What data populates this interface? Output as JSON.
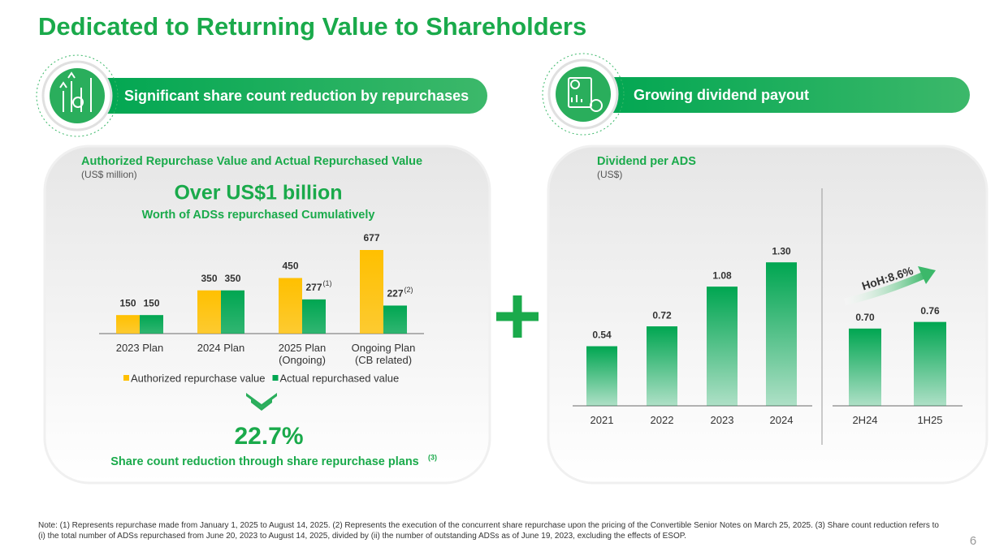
{
  "title": "Dedicated to Returning Value to Shareholders",
  "panels": [
    {
      "header": "Significant share count reduction by repurchases"
    },
    {
      "header": "Growing dividend payout"
    }
  ],
  "highlights": {
    "headline": "Over US$1 billion",
    "headline_sub": "Worth of ADSs repurchased Cumulatively",
    "reduction": "22.7%",
    "reduction_text": "Share count reduction through share repurchase plans",
    "reduction_note": "(3)"
  },
  "chart_data": [
    {
      "type": "bar",
      "title": "Authorized Repurchase Value and Actual Repurchased Value",
      "subtitle": "(US$ million)",
      "categories": [
        "2023 Plan",
        "2024 Plan",
        "2025 Plan\n(Ongoing)",
        "Ongoing Plan\n(CB related)"
      ],
      "series": [
        {
          "name": "Authorized repurchase value",
          "color": "#ffc000",
          "values": [
            150,
            350,
            450,
            677
          ]
        },
        {
          "name": "Actual repurchased value",
          "color": "#00a651",
          "values": [
            150,
            350,
            277,
            227
          ],
          "value_notes": [
            null,
            null,
            "(1)",
            "(2)"
          ]
        }
      ],
      "legend": "bottom"
    },
    {
      "type": "bar",
      "title": "Dividend per ADS",
      "subtitle": "(US$)",
      "categories": [
        "2021",
        "2022",
        "2023",
        "2024"
      ],
      "values": [
        0.54,
        0.72,
        1.08,
        1.3
      ],
      "value_labels": [
        "0.54",
        "0.72",
        "1.08",
        "1.30"
      ],
      "color": "#00a651"
    },
    {
      "type": "bar",
      "categories": [
        "2H24",
        "1H25"
      ],
      "values": [
        0.7,
        0.76
      ],
      "value_labels": [
        "0.70",
        "0.76"
      ],
      "color": "#00a651",
      "annotation": "HoH:8.6%"
    }
  ],
  "note": "Note: (1) Represents repurchase made from January 1, 2025 to August 14, 2025. (2) Represents the execution of the concurrent share repurchase upon the pricing of the Convertible Senior Notes on March 25, 2025. (3) Share count reduction refers to (i) the total number of ADSs repurchased from June 20, 2023 to August 14, 2025, divided by (ii) the number of outstanding ADSs as of June 19, 2023, excluding the effects of ESOP.",
  "page_number": "6"
}
